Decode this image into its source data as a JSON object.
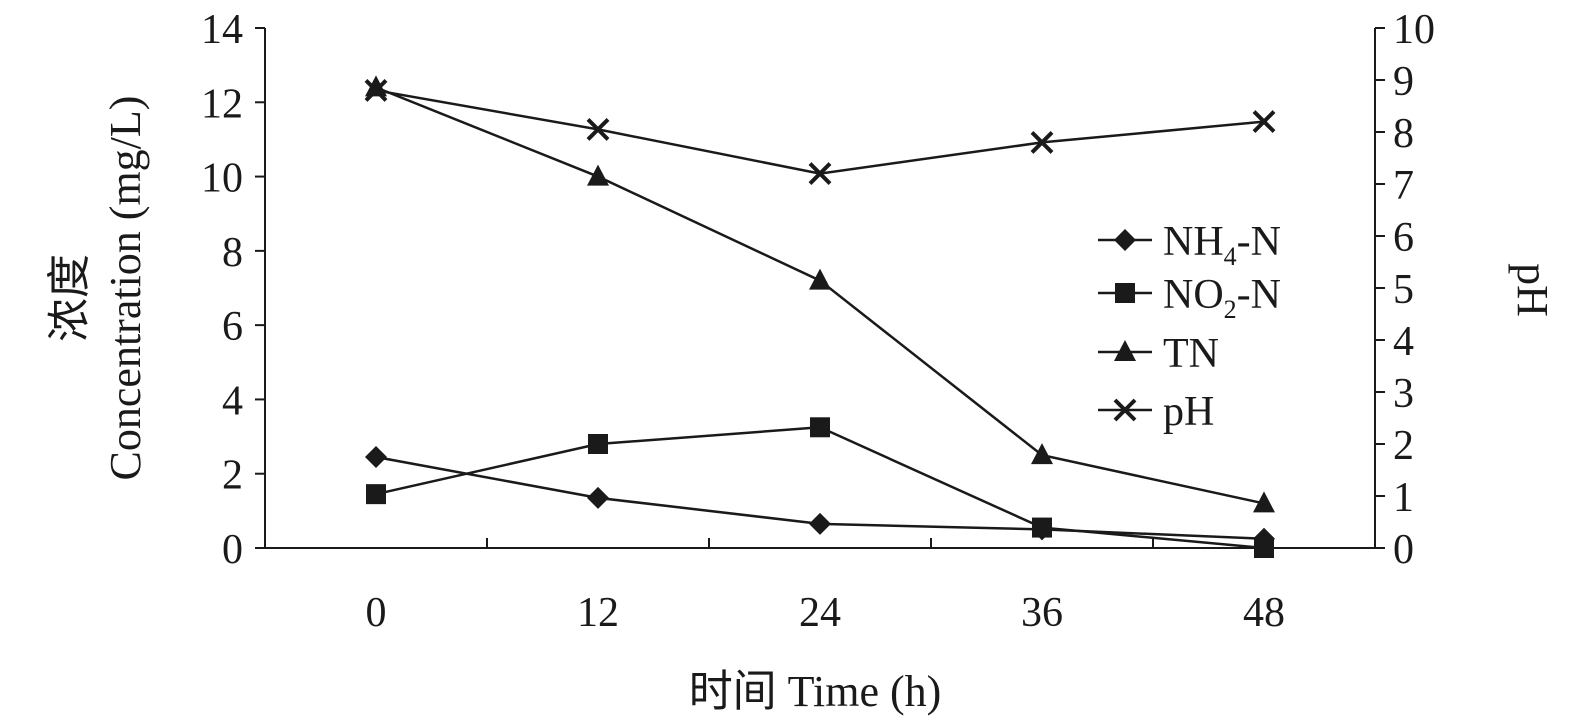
{
  "chart_data": {
    "type": "line",
    "x": [
      0,
      12,
      24,
      36,
      48
    ],
    "xlabel": "时间 Time (h)",
    "ylabel_cn": "浓度",
    "ylabel_en": "Concentration (mg/L)",
    "y2label": "pH",
    "xlim": [
      -6,
      54
    ],
    "ylim": [
      0,
      14
    ],
    "y2lim": [
      0,
      10
    ],
    "x_ticks": [
      "0",
      "12",
      "24",
      "36",
      "48"
    ],
    "y_ticks": [
      "0",
      "2",
      "4",
      "6",
      "8",
      "10",
      "12",
      "14"
    ],
    "y2_ticks": [
      "0",
      "1",
      "2",
      "3",
      "4",
      "5",
      "6",
      "7",
      "8",
      "9",
      "10"
    ],
    "grid": false,
    "legend_position": "right",
    "series": [
      {
        "name": "NH4-N",
        "legend_main": "NH",
        "legend_sub": "4",
        "legend_tail": "-N",
        "marker": "diamond",
        "axis": "left",
        "values": [
          2.45,
          1.35,
          0.65,
          0.5,
          0.25
        ]
      },
      {
        "name": "NO2-N",
        "legend_main": "NO",
        "legend_sub": "2",
        "legend_tail": "-N",
        "marker": "square",
        "axis": "left",
        "values": [
          1.45,
          2.8,
          3.25,
          0.55,
          0.0
        ]
      },
      {
        "name": "TN",
        "legend_main": "TN",
        "legend_sub": "",
        "legend_tail": "",
        "marker": "triangle",
        "axis": "left",
        "values": [
          12.4,
          10.0,
          7.2,
          2.5,
          1.2
        ]
      },
      {
        "name": "pH",
        "legend_main": "pH",
        "legend_sub": "",
        "legend_tail": "",
        "marker": "x",
        "axis": "right",
        "values": [
          8.8,
          8.05,
          7.2,
          7.8,
          8.2
        ]
      }
    ]
  }
}
